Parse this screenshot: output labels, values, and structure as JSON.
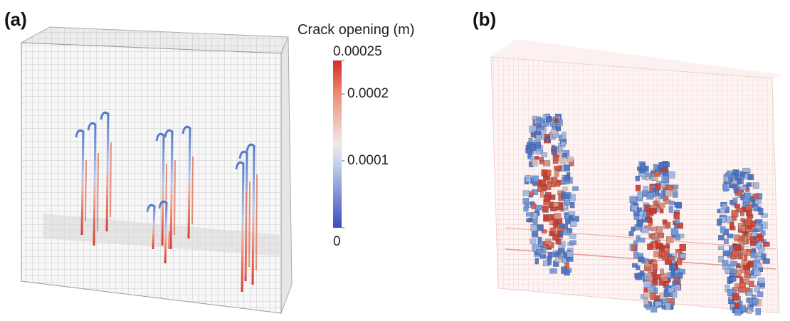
{
  "panel_a": {
    "label": "(a)"
  },
  "panel_b": {
    "label": "(b)"
  },
  "colorbar": {
    "title": "Crack opening (m)",
    "lim": [
      0,
      0.00025
    ],
    "ticks": [
      0,
      0.0001,
      0.0002,
      0.00025
    ]
  }
}
